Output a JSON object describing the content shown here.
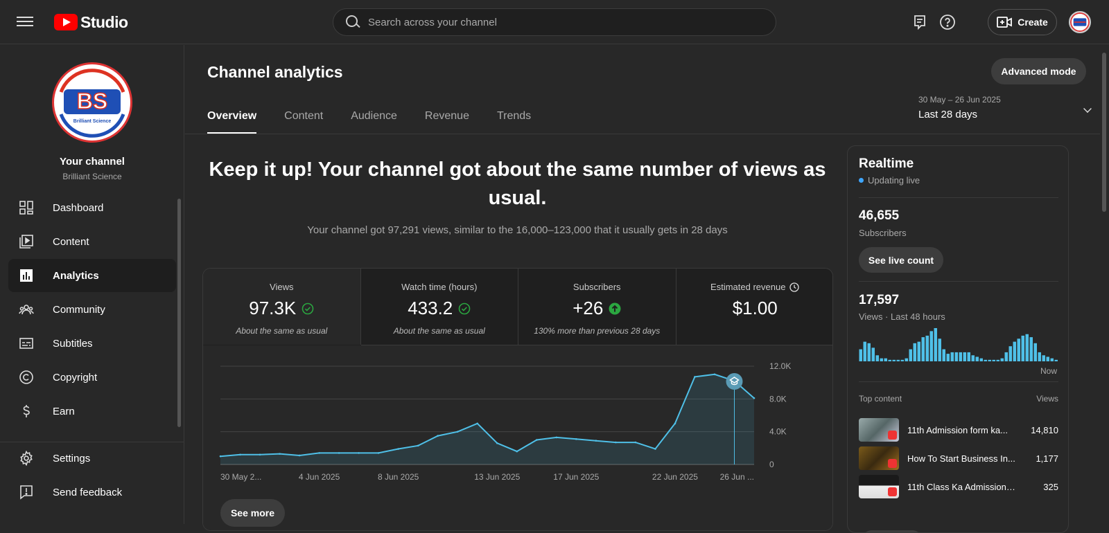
{
  "app": {
    "logo_text": "Studio"
  },
  "search": {
    "placeholder": "Search across your channel"
  },
  "header": {
    "create_label": "Create"
  },
  "channel": {
    "title": "Your channel",
    "name": "Brilliant Science",
    "logo_letters": "BS",
    "logo_caption": "Brilliant Science"
  },
  "sidebar": {
    "items": [
      {
        "label": "Dashboard",
        "icon": "dashboard-icon"
      },
      {
        "label": "Content",
        "icon": "content-icon"
      },
      {
        "label": "Analytics",
        "icon": "analytics-icon",
        "active": true
      },
      {
        "label": "Community",
        "icon": "community-icon"
      },
      {
        "label": "Subtitles",
        "icon": "subtitles-icon"
      },
      {
        "label": "Copyright",
        "icon": "copyright-icon"
      },
      {
        "label": "Earn",
        "icon": "earn-icon"
      }
    ],
    "bottom": [
      {
        "label": "Settings",
        "icon": "gear-icon"
      },
      {
        "label": "Send feedback",
        "icon": "feedback-icon"
      }
    ]
  },
  "page": {
    "title": "Channel analytics",
    "advanced_label": "Advanced mode",
    "tabs": [
      "Overview",
      "Content",
      "Audience",
      "Revenue",
      "Trends"
    ],
    "date_range": "30 May – 26 Jun 2025",
    "period": "Last 28 days",
    "headline": "Keep it up! Your channel got about the same number of views as usual.",
    "subline": "Your channel got 97,291 views, similar to the 16,000–123,000 that it usually gets in 28 days",
    "see_more": "See more"
  },
  "metrics": [
    {
      "label": "Views",
      "value": "97.3K",
      "note": "About the same as usual",
      "status": "check"
    },
    {
      "label": "Watch time (hours)",
      "value": "433.2",
      "note": "About the same as usual",
      "status": "check"
    },
    {
      "label": "Subscribers",
      "value": "+26",
      "note": "130% more than previous 28 days",
      "status": "up"
    },
    {
      "label": "Estimated revenue",
      "value": "$1.00",
      "note": "",
      "status": "clock"
    }
  ],
  "chart_data": {
    "type": "area",
    "x": [
      "30 May",
      "31 May",
      "1 Jun",
      "2 Jun",
      "3 Jun",
      "4 Jun",
      "5 Jun",
      "6 Jun",
      "7 Jun",
      "8 Jun",
      "9 Jun",
      "10 Jun",
      "11 Jun",
      "12 Jun",
      "13 Jun",
      "14 Jun",
      "15 Jun",
      "16 Jun",
      "17 Jun",
      "18 Jun",
      "19 Jun",
      "20 Jun",
      "21 Jun",
      "22 Jun",
      "23 Jun",
      "24 Jun",
      "25 Jun",
      "26 Jun"
    ],
    "values": [
      1000,
      1200,
      1200,
      1300,
      1100,
      1400,
      1400,
      1400,
      1400,
      1900,
      2300,
      3500,
      4000,
      5000,
      2600,
      1600,
      3000,
      3300,
      3100,
      2900,
      2700,
      2700,
      1900,
      5000,
      10700,
      11000,
      10200,
      8100
    ],
    "tick_labels": [
      "30 May 2...",
      "4 Jun 2025",
      "8 Jun 2025",
      "13 Jun 2025",
      "17 Jun 2025",
      "22 Jun 2025",
      "26 Jun ..."
    ],
    "tick_indices": [
      0,
      5,
      9,
      14,
      18,
      23,
      27
    ],
    "y_ticks": [
      "0",
      "4.0K",
      "8.0K",
      "12.0K"
    ],
    "y_tick_values": [
      0,
      4000,
      8000,
      12000
    ],
    "ylim": [
      0,
      12000
    ],
    "marker_index": 26,
    "line_color": "#4fc0e8",
    "grid": true
  },
  "realtime": {
    "title": "Realtime",
    "status": "Updating live",
    "subscribers": "46,655",
    "subscribers_label": "Subscribers",
    "live_count_label": "See live count",
    "views": "17,597",
    "views_label": "Views · Last 48 hours",
    "now_label": "Now",
    "hourly_views": [
      8,
      13,
      12,
      9,
      4,
      2,
      2,
      1,
      1,
      1,
      1,
      2,
      8,
      12,
      13,
      16,
      17,
      20,
      22,
      15,
      8,
      5,
      6,
      6,
      6,
      6,
      6,
      4,
      3,
      2,
      1,
      1,
      1,
      1,
      2,
      6,
      10,
      13,
      15,
      17,
      18,
      16,
      12,
      6,
      4,
      3,
      2,
      1
    ],
    "top_content_label": "Top content",
    "top_views_label": "Views",
    "top_content": [
      {
        "title": "11th Admission form ka...",
        "views": "14,810"
      },
      {
        "title": "How To Start Business In...",
        "views": "1,177"
      },
      {
        "title": "11th Class Ka Admission F...",
        "views": "325"
      }
    ]
  }
}
